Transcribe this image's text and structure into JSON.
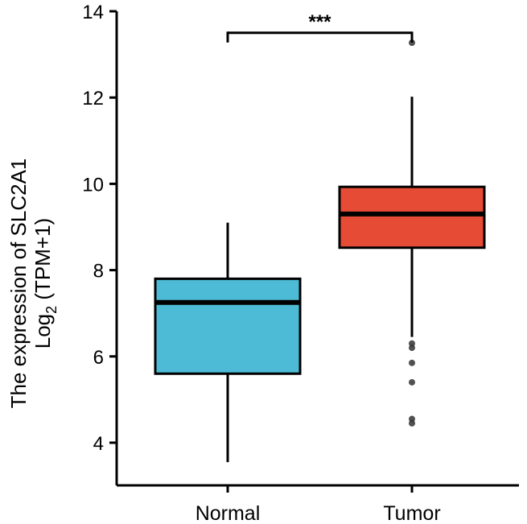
{
  "chart_data": {
    "type": "boxplot",
    "title": "",
    "xlabel": "",
    "ylabel_line1": "The expression of SLC2A1",
    "ylabel_line2_base": "Log",
    "ylabel_line2_sub": "2",
    "ylabel_line2_rest": " (TPM+1)",
    "ylim": [
      3.0,
      14.0
    ],
    "yticks": [
      4,
      6,
      8,
      10,
      12,
      14
    ],
    "categories": [
      "Normal",
      "Tumor"
    ],
    "boxes": [
      {
        "name": "Normal",
        "color": "#4DBBD5",
        "whisker_low": 3.55,
        "q1": 5.6,
        "median": 7.25,
        "q3": 7.8,
        "whisker_high": 9.1,
        "outliers": []
      },
      {
        "name": "Tumor",
        "color": "#E64B35",
        "whisker_low": 6.45,
        "q1": 8.52,
        "median": 9.3,
        "q3": 9.93,
        "whisker_high": 12.02,
        "outliers": [
          13.27,
          6.3,
          6.2,
          5.85,
          5.4,
          4.55,
          4.45
        ]
      }
    ],
    "significance": {
      "label": "***",
      "level": 13.5,
      "between": [
        "Normal",
        "Tumor"
      ]
    }
  }
}
